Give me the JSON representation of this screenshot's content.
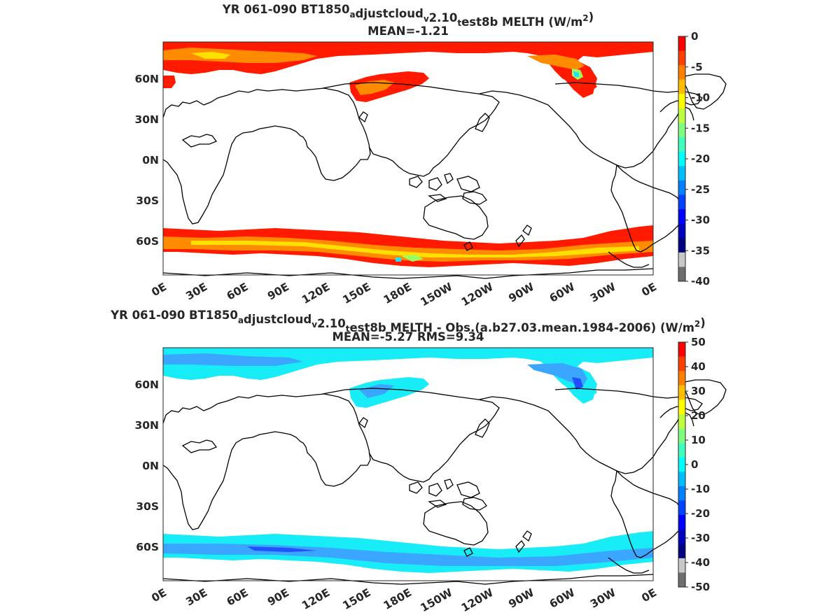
{
  "panels": [
    {
      "title_parts": [
        "YR 061-090 BT1850",
        "a",
        "djustcloud",
        "v",
        "2.10",
        "t",
        "est8b  MELTH (W/m",
        "2",
        ")"
      ],
      "mean_line": "MEAN=-1.21",
      "colorbar": {
        "ticks": [
          "0",
          "-5",
          "-10",
          "-15",
          "-20",
          "-25",
          "-30",
          "-35",
          "-40"
        ],
        "range": [
          -40,
          0
        ],
        "colors": [
          "#ff0000",
          "#ff4000",
          "#ff8000",
          "#ffbf00",
          "#ffff00",
          "#bfff40",
          "#80ff80",
          "#40ffbf",
          "#00ffff",
          "#00bfff",
          "#0080ff",
          "#0040ff",
          "#0000ff",
          "#0000bf",
          "#000080",
          "#c8c8c8",
          "#6e6e6e"
        ]
      }
    },
    {
      "title_parts": [
        "YR 061-090 BT1850",
        "a",
        "djustcloud",
        "v",
        "2.10",
        "t",
        "est8b MELTH - Obs.(a.b27.03.mean.1984-2006) (W/m",
        "2",
        ")"
      ],
      "mean_line": "MEAN=-5.27 RMS=9.34",
      "colorbar": {
        "ticks": [
          "50",
          "40",
          "30",
          "20",
          "10",
          "0",
          "-10",
          "-20",
          "-30",
          "-40",
          "-50"
        ],
        "range": [
          -50,
          50
        ],
        "colors": [
          "#ff0000",
          "#ff4000",
          "#ff8000",
          "#ffbf00",
          "#ffff00",
          "#bfff40",
          "#80ff80",
          "#40ffbf",
          "#00ffff",
          "#00bfff",
          "#0080ff",
          "#0040ff",
          "#0000ff",
          "#0000bf",
          "#000080",
          "#c8c8c8",
          "#6e6e6e"
        ]
      }
    }
  ],
  "map": {
    "lat_labels": [
      "60N",
      "30N",
      "0N",
      "30S",
      "60S"
    ],
    "lon_labels": [
      "0E",
      "30E",
      "60E",
      "90E",
      "120E",
      "150E",
      "180E",
      "150W",
      "120W",
      "90W",
      "60W",
      "30W",
      "0E"
    ]
  },
  "colors": {
    "top_main": "#ff1a00",
    "top_orange": "#ff8c00",
    "top_yellow": "#ffe000",
    "top_green": "#9cff60",
    "top_cyan": "#20e0ff",
    "bottom_main": "#18ecf6",
    "bottom_blue": "#3aa6ff",
    "bottom_dark": "#2050ff",
    "coast": "#000000"
  }
}
